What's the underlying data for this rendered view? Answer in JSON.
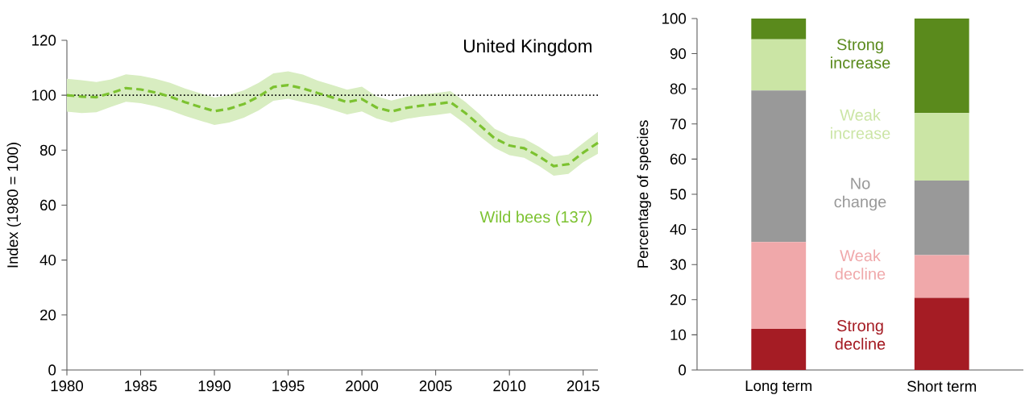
{
  "chart_data": [
    {
      "type": "line",
      "title": "United Kingdom",
      "ylabel": "Index (1980 = 100)",
      "line_style": "dashed",
      "x": [
        1980,
        1981,
        1982,
        1983,
        1984,
        1985,
        1986,
        1987,
        1988,
        1989,
        1990,
        1991,
        1992,
        1993,
        1994,
        1995,
        1996,
        1997,
        1998,
        1999,
        2000,
        2001,
        2002,
        2003,
        2004,
        2005,
        2006,
        2007,
        2008,
        2009,
        2010,
        2011,
        2012,
        2013,
        2014,
        2015,
        2016
      ],
      "series": [
        {
          "name": "Wild bees (137)",
          "color": "#7cc230",
          "values": [
            100,
            99.5,
            99.3,
            100.8,
            102.6,
            102.1,
            101,
            99.5,
            97.5,
            95.8,
            94.2,
            95.1,
            96.8,
            99.5,
            103,
            103.7,
            102.5,
            100.8,
            99.2,
            97.5,
            98.6,
            95.5,
            94.1,
            95.4,
            96.2,
            96.8,
            97.5,
            93.6,
            89,
            84.3,
            81.7,
            80.7,
            77.8,
            74.2,
            74.9,
            79.1,
            82.7
          ],
          "lower": [
            94,
            93.5,
            93.8,
            95.8,
            97.6,
            97.1,
            96,
            94.5,
            92.5,
            90.8,
            89.2,
            90.1,
            91.8,
            94.5,
            98,
            98.7,
            97.5,
            96.3,
            94.7,
            93,
            94.1,
            91.5,
            90.1,
            91.4,
            92.2,
            92.8,
            93.5,
            89.6,
            85,
            80.8,
            78.2,
            77.2,
            74.3,
            70.7,
            71.4,
            75.6,
            78.7
          ],
          "upper": [
            106,
            105.5,
            104.8,
            105.8,
            107.6,
            107.1,
            106,
            104.5,
            102.5,
            100.8,
            99.2,
            100.1,
            101.8,
            104.5,
            108,
            108.7,
            107.5,
            105.3,
            103.7,
            102,
            103.1,
            99.5,
            98.1,
            99.4,
            100.2,
            100.8,
            101.5,
            97.6,
            93,
            87.8,
            85.2,
            84.2,
            81.3,
            77.7,
            78.4,
            82.6,
            86.7
          ]
        }
      ],
      "xlim": [
        1980,
        2016
      ],
      "xticks": [
        1980,
        1985,
        1990,
        1995,
        2000,
        2005,
        2010,
        2015
      ],
      "ylim": [
        0,
        120
      ],
      "yticks": [
        0,
        20,
        40,
        60,
        80,
        100,
        120
      ],
      "ref_lines": [
        {
          "axis": "y",
          "value": 100,
          "line_style": "dotted",
          "color": "#000000"
        }
      ]
    },
    {
      "type": "bar",
      "stacked": true,
      "ylabel": "Percentage of species",
      "categories": [
        "Long term",
        "Short term"
      ],
      "series": [
        {
          "name": "Strong decline",
          "color": "#a51c24",
          "values": [
            11.7,
            20.5
          ]
        },
        {
          "name": "Weak decline",
          "color": "#f0a8aa",
          "values": [
            24.7,
            12.2
          ]
        },
        {
          "name": "No change",
          "color": "#999999",
          "values": [
            43.1,
            21.2
          ]
        },
        {
          "name": "Weak increase",
          "color": "#cbe5a5",
          "values": [
            14.6,
            19.2
          ]
        },
        {
          "name": "Strong increase",
          "color": "#5a8a1c",
          "values": [
            5.9,
            26.9
          ]
        }
      ],
      "ylim": [
        0,
        100
      ],
      "yticks": [
        0,
        10,
        20,
        30,
        40,
        50,
        60,
        70,
        80,
        90,
        100
      ]
    }
  ]
}
